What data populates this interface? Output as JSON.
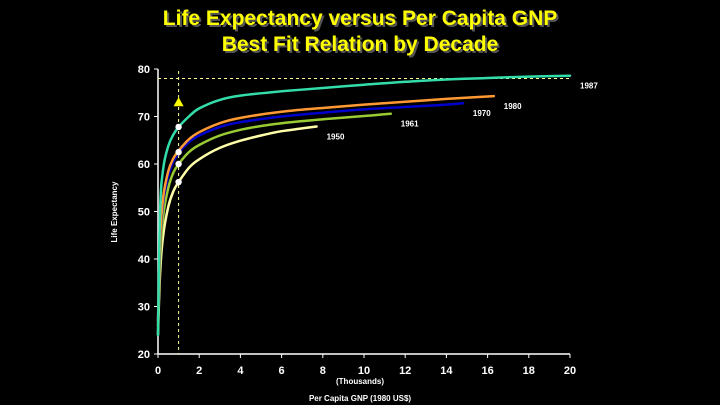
{
  "slide": {
    "title_line1": "Life Expectancy versus Per Capita GNP",
    "title_line2": "Best Fit Relation by Decade",
    "background": "#000000",
    "title_color": "#ffff00"
  },
  "chart_data": {
    "type": "line",
    "title": "Life Expectancy versus Per Capita GNP\nBest Fit Relation by Decade",
    "xlabel": "Per Capita GNP (1980 US$)",
    "xlabel_units": "(Thousands)",
    "ylabel": "Life Expectancy",
    "xlim": [
      0,
      20
    ],
    "ylim": [
      20,
      80
    ],
    "xticks": [
      0,
      2,
      4,
      6,
      8,
      10,
      12,
      14,
      16,
      18,
      20
    ],
    "yticks": [
      20,
      30,
      40,
      50,
      60,
      70,
      80
    ],
    "grid": false,
    "legend": "inline labels at curve ends",
    "series": [
      {
        "name": "1950",
        "color": "#ffffaa",
        "x": [
          0,
          0.1,
          0.25,
          0.5,
          0.75,
          1,
          1.5,
          2,
          3,
          4,
          5,
          6,
          7,
          7.7
        ],
        "y": [
          24,
          37,
          45,
          51,
          54.3,
          56.2,
          59.2,
          61,
          63.4,
          64.9,
          66,
          66.9,
          67.5,
          67.9
        ]
      },
      {
        "name": "1961",
        "color": "#99cc33",
        "x": [
          0,
          0.1,
          0.25,
          0.5,
          0.75,
          1,
          1.5,
          2,
          3,
          4,
          5,
          6,
          8,
          10,
          11.3
        ],
        "y": [
          26,
          40,
          49,
          55,
          58.2,
          60,
          62.5,
          64,
          66,
          67.2,
          68,
          68.6,
          69.4,
          70.1,
          70.6
        ]
      },
      {
        "name": "1970",
        "color": "#0000cc",
        "x": [
          0,
          0.1,
          0.25,
          0.5,
          0.75,
          1,
          1.5,
          2,
          3,
          4,
          6,
          8,
          10,
          12,
          14,
          14.8
        ],
        "y": [
          27,
          43,
          52,
          57.5,
          60.5,
          62.3,
          64.6,
          66,
          67.8,
          68.8,
          70,
          70.8,
          71.5,
          72,
          72.5,
          72.8
        ]
      },
      {
        "name": "1980",
        "color": "#ff9933",
        "x": [
          0,
          0.1,
          0.25,
          0.5,
          0.75,
          1,
          1.5,
          2,
          3,
          4,
          6,
          8,
          10,
          12,
          14,
          16.3
        ],
        "y": [
          27,
          44,
          53,
          58.5,
          61.2,
          62.8,
          65.2,
          66.7,
          68.6,
          69.7,
          71,
          71.8,
          72.5,
          73.1,
          73.7,
          74.3
        ]
      },
      {
        "name": "1987",
        "color": "#33ddaa",
        "x": [
          0,
          0.1,
          0.25,
          0.5,
          0.75,
          1,
          1.5,
          2,
          3,
          4,
          6,
          8,
          10,
          12,
          14,
          16,
          18,
          20
        ],
        "y": [
          24,
          50,
          59,
          63.8,
          66.2,
          67.8,
          70,
          71.7,
          73.5,
          74.4,
          75.3,
          76,
          76.7,
          77.3,
          77.8,
          78.1,
          78.4,
          78.6
        ]
      }
    ],
    "markers": [
      {
        "x": 1,
        "y": 56.2,
        "color": "#ffffff"
      },
      {
        "x": 1,
        "y": 60,
        "color": "#ffffff"
      },
      {
        "x": 1,
        "y": 62.5,
        "color": "#ffffff"
      },
      {
        "x": 1,
        "y": 67.8,
        "color": "#ffffff"
      }
    ],
    "reference_lines": {
      "vertical_x": 1,
      "horizontal_y": 78,
      "color": "#ffff99",
      "style": "dashed"
    },
    "target_marker": {
      "x": 1,
      "y": 73,
      "shape": "triangle",
      "color": "#ffff00"
    },
    "axis_color": "#ffffff"
  }
}
